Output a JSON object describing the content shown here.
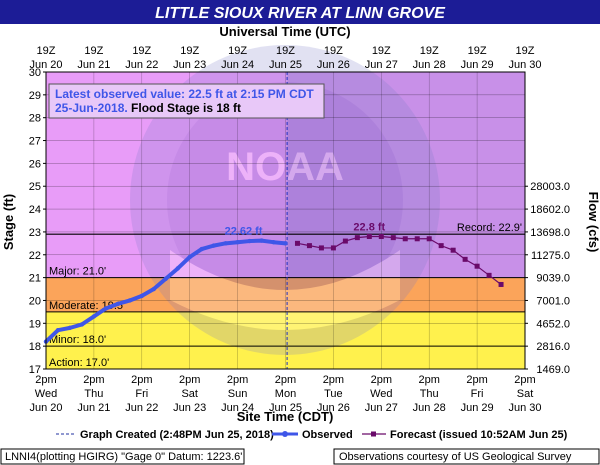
{
  "title": "LITTLE SIOUX RIVER AT LINN GROVE",
  "top_axis_title": "Universal Time (UTC)",
  "bottom_axis_title": "Site Time (CDT)",
  "left_axis_title": "Stage (ft)",
  "right_axis_title": "Flow (cfs)",
  "infobox": {
    "line1": "Latest observed value: 22.5 ft at 2:15 PM CDT",
    "line2_date": "25-Jun-2018.",
    "line2_rest": " Flood Stage is 18 ft"
  },
  "legend": {
    "graph_created": "Graph Created (2:48PM Jun 25, 2018)",
    "observed": "Observed",
    "forecast": "Forecast (issued 10:52AM Jun 25)"
  },
  "footer": {
    "left": "LNNI4(plotting HGIRG) \"Gage 0\" Datum: 1223.6'",
    "right": "Observations courtesy of US Geological Survey"
  },
  "colors": {
    "title_bar": "#1c1c96",
    "plot_bg": "#e89cf8",
    "future_bg": "#c890e8",
    "major": "#f26c6c",
    "moderate": "#fba45a",
    "minor": "#fff14d",
    "action": "#fff14d",
    "observed": "#3f56e8",
    "forecast": "#6a0a6a"
  },
  "chart_data": {
    "type": "line",
    "x_range": [
      "2018-06-20 14:00 CDT",
      "2018-06-30 14:00 CDT"
    ],
    "y_range": [
      17,
      30
    ],
    "y_ticks": [
      17,
      18,
      19,
      20,
      21,
      22,
      23,
      24,
      25,
      26,
      27,
      28,
      29,
      30
    ],
    "bottom_ticks": [
      {
        "time": "2pm",
        "day": "Wed",
        "date": "Jun 20"
      },
      {
        "time": "2pm",
        "day": "Thu",
        "date": "Jun 21"
      },
      {
        "time": "2pm",
        "day": "Fri",
        "date": "Jun 22"
      },
      {
        "time": "2pm",
        "day": "Sat",
        "date": "Jun 23"
      },
      {
        "time": "2pm",
        "day": "Sun",
        "date": "Jun 24"
      },
      {
        "time": "2pm",
        "day": "Mon",
        "date": "Jun 25"
      },
      {
        "time": "2pm",
        "day": "Tue",
        "date": "Jun 26"
      },
      {
        "time": "2pm",
        "day": "Wed",
        "date": "Jun 27"
      },
      {
        "time": "2pm",
        "day": "Thu",
        "date": "Jun 28"
      },
      {
        "time": "2pm",
        "day": "Fri",
        "date": "Jun 29"
      },
      {
        "time": "2pm",
        "day": "Sat",
        "date": "Jun 30"
      }
    ],
    "top_ticks": [
      {
        "time": "19Z",
        "date": "Jun 20"
      },
      {
        "time": "19Z",
        "date": "Jun 21"
      },
      {
        "time": "19Z",
        "date": "Jun 22"
      },
      {
        "time": "19Z",
        "date": "Jun 23"
      },
      {
        "time": "19Z",
        "date": "Jun 24"
      },
      {
        "time": "19Z",
        "date": "Jun 25"
      },
      {
        "time": "19Z",
        "date": "Jun 26"
      },
      {
        "time": "19Z",
        "date": "Jun 27"
      },
      {
        "time": "19Z",
        "date": "Jun 28"
      },
      {
        "time": "19Z",
        "date": "Jun 29"
      },
      {
        "time": "19Z",
        "date": "Jun 30"
      }
    ],
    "flow_ticks": [
      {
        "stage": 17.0,
        "label": "1469.0"
      },
      {
        "stage": 18.0,
        "label": "2816.0"
      },
      {
        "stage": 19.0,
        "label": "4652.0"
      },
      {
        "stage": 20.0,
        "label": "7001.0"
      },
      {
        "stage": 21.0,
        "label": "9039.0"
      },
      {
        "stage": 22.0,
        "label": "11275.0"
      },
      {
        "stage": 23.0,
        "label": "13698.0"
      },
      {
        "stage": 24.0,
        "label": "18602.0"
      },
      {
        "stage": 25.0,
        "label": "28003.0"
      }
    ],
    "categories": [
      {
        "name": "Action",
        "label": "Action: 17.0'",
        "from": 17.0,
        "to": 18.0
      },
      {
        "name": "Minor",
        "label": "Minor: 18.0'",
        "from": 18.0,
        "to": 19.5
      },
      {
        "name": "Moderate",
        "label": "Moderate: 19.5'",
        "from": 19.5,
        "to": 21.0
      },
      {
        "name": "Major",
        "label": "Major: 21.0'",
        "from": 21.0,
        "to": 30.0
      }
    ],
    "record": {
      "value": 22.9,
      "label": "Record: 22.9'"
    },
    "graph_created_time": "2018-06-25 14:48 CDT",
    "observed_peak_label": "22.62 ft",
    "forecast_peak_label": "22.8 ft",
    "series": [
      {
        "name": "Observed",
        "x": [
          "2018-06-20 14:00",
          "2018-06-20 20:00",
          "2018-06-21 02:00",
          "2018-06-21 08:00",
          "2018-06-21 14:00",
          "2018-06-21 20:00",
          "2018-06-22 02:00",
          "2018-06-22 08:00",
          "2018-06-22 14:00",
          "2018-06-22 20:00",
          "2018-06-23 02:00",
          "2018-06-23 08:00",
          "2018-06-23 14:00",
          "2018-06-23 20:00",
          "2018-06-24 02:00",
          "2018-06-24 08:00",
          "2018-06-24 14:00",
          "2018-06-24 20:00",
          "2018-06-25 02:00",
          "2018-06-25 08:00",
          "2018-06-25 14:00"
        ],
        "values": [
          18.2,
          18.7,
          18.8,
          18.95,
          19.3,
          19.65,
          19.85,
          20.0,
          20.2,
          20.5,
          20.95,
          21.4,
          21.9,
          22.25,
          22.4,
          22.5,
          22.55,
          22.6,
          22.62,
          22.55,
          22.5
        ]
      },
      {
        "name": "Forecast",
        "x": [
          "2018-06-25 20:00",
          "2018-06-26 02:00",
          "2018-06-26 08:00",
          "2018-06-26 14:00",
          "2018-06-26 20:00",
          "2018-06-27 02:00",
          "2018-06-27 08:00",
          "2018-06-27 14:00",
          "2018-06-27 20:00",
          "2018-06-28 02:00",
          "2018-06-28 08:00",
          "2018-06-28 14:00",
          "2018-06-28 20:00",
          "2018-06-29 02:00",
          "2018-06-29 08:00",
          "2018-06-29 14:00",
          "2018-06-29 20:00",
          "2018-06-30 02:00"
        ],
        "values": [
          22.5,
          22.4,
          22.3,
          22.3,
          22.6,
          22.75,
          22.8,
          22.8,
          22.75,
          22.7,
          22.7,
          22.7,
          22.4,
          22.2,
          21.8,
          21.5,
          21.1,
          20.7
        ]
      }
    ]
  }
}
